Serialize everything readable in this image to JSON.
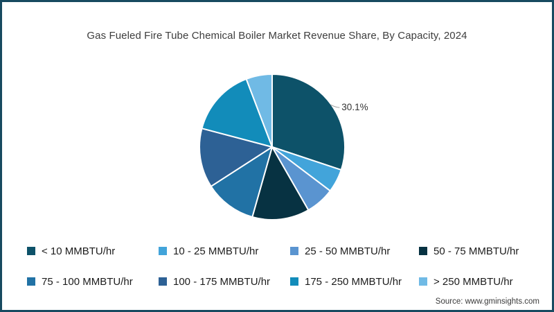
{
  "title": "Gas Fueled Fire Tube Chemical Boiler Market Revenue Share, By Capacity, 2024",
  "source": "Source: www.gminsights.com",
  "frame": {
    "border_color": "#174a60",
    "background": "#ffffff"
  },
  "chart_data": {
    "type": "pie",
    "title": "Gas Fueled Fire Tube Chemical Boiler Market Revenue Share, By Capacity, 2024",
    "start_angle_deg": 0,
    "direction": "clockwise",
    "legend_position": "bottom",
    "data_label_shown_on": "< 10 MMBTU/hr",
    "data_label_text": "30.1%",
    "slices": [
      {
        "label": "< 10 MMBTU/hr",
        "value": 30.1,
        "color": "#0d5269",
        "data_label": "30.1%"
      },
      {
        "label": "10 - 25 MMBTU/hr",
        "value": 5.2,
        "color": "#42a4da"
      },
      {
        "label": "25 - 50 MMBTU/hr",
        "value": 6.4,
        "color": "#5a94d0"
      },
      {
        "label": "50 - 75 MMBTU/hr",
        "value": 12.7,
        "color": "#073242"
      },
      {
        "label": "75 - 100 MMBTU/hr",
        "value": 11.5,
        "color": "#2172a5"
      },
      {
        "label": "100 - 175 MMBTU/hr",
        "value": 13.2,
        "color": "#2d6195"
      },
      {
        "label": "175 - 250 MMBTU/hr",
        "value": 15.1,
        "color": "#128cba"
      },
      {
        "label": "> 250 MMBTU/hr",
        "value": 5.8,
        "color": "#70bae5"
      }
    ]
  }
}
